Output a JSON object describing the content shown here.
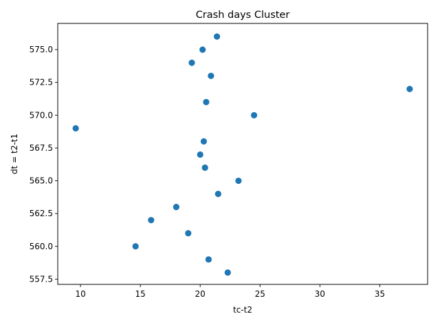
{
  "chart_data": {
    "type": "scatter",
    "title": "Crash days Cluster",
    "xlabel": "tc-t2",
    "ylabel": "dt = t2-t1",
    "xlim": [
      8.1,
      39.0
    ],
    "ylim": [
      557.1,
      577.0
    ],
    "xticks": [
      10,
      15,
      20,
      25,
      30,
      35
    ],
    "xtick_labels": [
      "10",
      "15",
      "20",
      "25",
      "30",
      "35"
    ],
    "yticks": [
      557.5,
      560.0,
      562.5,
      565.0,
      567.5,
      570.0,
      572.5,
      575.0
    ],
    "ytick_labels": [
      "557.5",
      "560.0",
      "562.5",
      "565.0",
      "567.5",
      "570.0",
      "572.5",
      "575.0"
    ],
    "grid": false,
    "marker_color": "#1f77b4",
    "points": [
      {
        "x": 21.4,
        "y": 576
      },
      {
        "x": 20.2,
        "y": 575
      },
      {
        "x": 19.3,
        "y": 574
      },
      {
        "x": 20.9,
        "y": 573
      },
      {
        "x": 37.5,
        "y": 572
      },
      {
        "x": 20.5,
        "y": 571
      },
      {
        "x": 24.5,
        "y": 570
      },
      {
        "x": 9.6,
        "y": 569
      },
      {
        "x": 20.3,
        "y": 568
      },
      {
        "x": 20.0,
        "y": 567
      },
      {
        "x": 20.4,
        "y": 566
      },
      {
        "x": 23.2,
        "y": 565
      },
      {
        "x": 21.5,
        "y": 564
      },
      {
        "x": 18.0,
        "y": 563
      },
      {
        "x": 15.9,
        "y": 562
      },
      {
        "x": 19.0,
        "y": 561
      },
      {
        "x": 14.6,
        "y": 560
      },
      {
        "x": 20.7,
        "y": 559
      },
      {
        "x": 22.3,
        "y": 558
      }
    ]
  }
}
